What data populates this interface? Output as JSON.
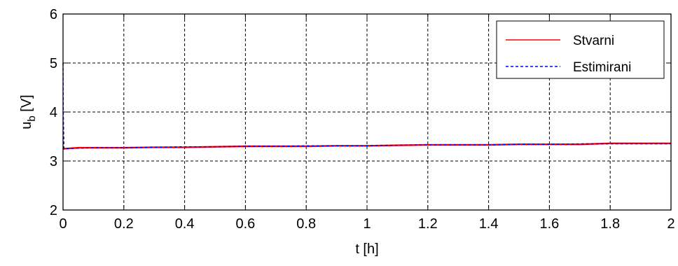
{
  "chart_data": {
    "type": "line",
    "title": "",
    "xlabel": "t [h]",
    "ylabel": {
      "main": "u",
      "sub": "b",
      "unit": " [V]"
    },
    "xlim": [
      0,
      2
    ],
    "ylim": [
      2,
      6
    ],
    "xticks": [
      "0",
      "0.2",
      "0.4",
      "0.6",
      "0.8",
      "1",
      "1.2",
      "1.4",
      "1.6",
      "1.8",
      "2"
    ],
    "yticks": [
      "2",
      "3",
      "4",
      "5",
      "6"
    ],
    "grid": true,
    "legend_position": "top-right",
    "series": [
      {
        "name": "Stvarni",
        "color": "#ff0000",
        "style": "solid",
        "x": [
          0.0,
          0.002,
          0.05,
          0.1,
          0.2,
          0.3,
          0.4,
          0.5,
          0.6,
          0.7,
          0.8,
          0.9,
          1.0,
          1.1,
          1.2,
          1.3,
          1.4,
          1.5,
          1.6,
          1.7,
          1.8,
          1.9,
          2.0
        ],
        "y": [
          3.24,
          3.25,
          3.27,
          3.27,
          3.27,
          3.28,
          3.28,
          3.29,
          3.3,
          3.3,
          3.3,
          3.31,
          3.31,
          3.32,
          3.33,
          3.33,
          3.33,
          3.34,
          3.34,
          3.34,
          3.36,
          3.36,
          3.36
        ]
      },
      {
        "name": "Estimirani",
        "color": "#0000ff",
        "style": "dashed",
        "x": [
          0.0,
          0.001,
          0.003,
          0.01,
          0.05,
          0.1,
          0.2,
          0.3,
          0.4,
          0.5,
          0.6,
          0.7,
          0.8,
          0.9,
          1.0,
          1.1,
          1.2,
          1.3,
          1.4,
          1.5,
          1.6,
          1.7,
          1.8,
          1.9,
          2.0
        ],
        "y": [
          5.0,
          4.0,
          3.25,
          3.25,
          3.26,
          3.27,
          3.27,
          3.28,
          3.29,
          3.29,
          3.3,
          3.3,
          3.31,
          3.31,
          3.31,
          3.32,
          3.33,
          3.33,
          3.33,
          3.34,
          3.34,
          3.35,
          3.35,
          3.35,
          3.35
        ]
      }
    ]
  }
}
